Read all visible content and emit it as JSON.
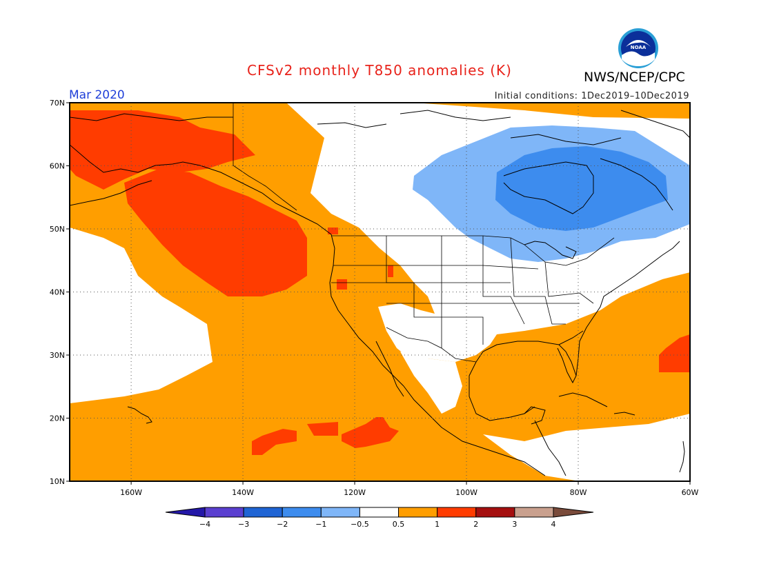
{
  "header": {
    "title": "CFSv2 monthly T850 anomalies (K)",
    "agency": "NWS/NCEP/CPC",
    "logo_text": "NOAA",
    "month": "Mar 2020",
    "initial_conditions": "Initial conditions: 1Dec2019–10Dec2019"
  },
  "map": {
    "projection": "cylindrical equidistant",
    "lon_range": [
      -171,
      -60
    ],
    "lat_range": [
      10,
      70
    ],
    "lat_ticks": [
      {
        "value": 10,
        "label": "10N"
      },
      {
        "value": 20,
        "label": "20N"
      },
      {
        "value": 30,
        "label": "30N"
      },
      {
        "value": 40,
        "label": "40N"
      },
      {
        "value": 50,
        "label": "50N"
      },
      {
        "value": 60,
        "label": "60N"
      },
      {
        "value": 70,
        "label": "70N"
      }
    ],
    "lon_ticks": [
      {
        "value": -160,
        "label": "160W"
      },
      {
        "value": -140,
        "label": "140W"
      },
      {
        "value": -120,
        "label": "120W"
      },
      {
        "value": -100,
        "label": "100W"
      },
      {
        "value": -80,
        "label": "80W"
      },
      {
        "value": -60,
        "label": "60W"
      }
    ],
    "grid": "dotted",
    "anomaly_regions": [
      {
        "name": "warm-anomaly-alaska-gulf",
        "category": "1 to 2",
        "description_lonlat": [
          [
            -171,
            70
          ],
          [
            -158,
            70
          ],
          [
            -140,
            66
          ],
          [
            -142,
            60
          ],
          [
            -130,
            52
          ],
          [
            -130,
            45
          ],
          [
            -140,
            43
          ],
          [
            -150,
            48
          ],
          [
            -163,
            56
          ],
          [
            -171,
            60
          ]
        ]
      },
      {
        "name": "cold-anomaly-hudson-bay",
        "category": "-2 to -1",
        "description_lonlat": [
          [
            -93,
            62
          ],
          [
            -80,
            63
          ],
          [
            -67,
            60
          ],
          [
            -64,
            52
          ],
          [
            -73,
            49
          ],
          [
            -90,
            51
          ],
          [
            -94,
            55
          ]
        ]
      },
      {
        "name": "cool-anomaly-canada",
        "category": "-1 to -0.5",
        "description_lonlat": [
          [
            -110,
            58
          ],
          [
            -100,
            64
          ],
          [
            -80,
            66
          ],
          [
            -70,
            64
          ],
          [
            -60,
            60
          ],
          [
            -60,
            52
          ],
          [
            -70,
            47
          ],
          [
            -80,
            44
          ],
          [
            -90,
            45
          ],
          [
            -100,
            50
          ]
        ]
      },
      {
        "name": "warm-anomaly-west-atlantic",
        "category": "1 to 2",
        "description_lonlat": [
          [
            -63,
            32
          ],
          [
            -60,
            33
          ],
          [
            -60,
            28
          ],
          [
            -65,
            28
          ]
        ]
      }
    ]
  },
  "colorbar": {
    "levels": [
      "-4",
      "-3",
      "-2",
      "-1",
      "-0.5",
      "0.5",
      "1",
      "2",
      "3",
      "4"
    ],
    "colors": [
      "#2418a8",
      "#5a3fd0",
      "#1f64d4",
      "#3d8cee",
      "#7fb6f8",
      "#ffffff",
      "#ff9e00",
      "#ff3c00",
      "#a50f0f",
      "#c9a08e",
      "#7a4b3b"
    ]
  },
  "colors": {
    "title": "#e8231b",
    "month": "#1f3fd8",
    "ocean_default": "#ff9e00",
    "neutral": "#ffffff",
    "coastline": "#000000"
  }
}
